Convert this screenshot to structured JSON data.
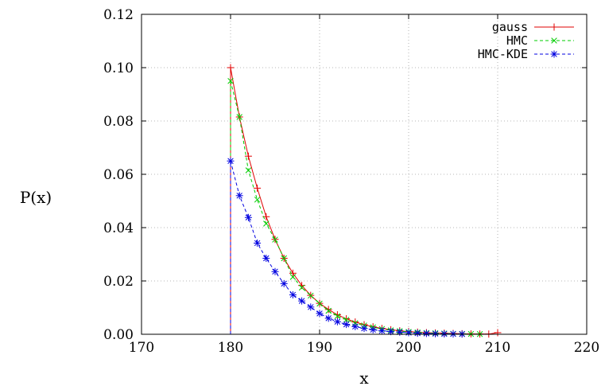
{
  "chart_data": {
    "type": "line",
    "xlabel": "x",
    "ylabel": "P(x)",
    "xlim": [
      170,
      220
    ],
    "ylim": [
      0,
      0.12
    ],
    "xticks": [
      "170",
      "180",
      "190",
      "200",
      "210",
      "220"
    ],
    "yticks": [
      "0.00",
      "0.02",
      "0.04",
      "0.06",
      "0.08",
      "0.10",
      "0.12"
    ],
    "grid": true,
    "legend_position": "top-right",
    "series": [
      {
        "name": "gauss",
        "color": "#e00000",
        "marker": "plus",
        "line": "solid",
        "x": [
          180,
          181,
          182,
          183,
          184,
          185,
          186,
          187,
          188,
          189,
          190,
          191,
          192,
          193,
          194,
          195,
          196,
          197,
          198,
          199,
          200,
          201,
          202,
          203,
          204,
          205,
          206,
          207,
          208,
          209,
          210
        ],
        "y": [
          0.1,
          0.0815,
          0.0668,
          0.0548,
          0.0441,
          0.0356,
          0.0285,
          0.0229,
          0.0183,
          0.0146,
          0.0116,
          0.0093,
          0.0073,
          0.0058,
          0.0046,
          0.0036,
          0.0028,
          0.0022,
          0.0017,
          0.0013,
          0.001,
          0.0008,
          0.0006,
          0.0005,
          0.0004,
          0.0003,
          0.0002,
          0.00015,
          0.0001,
          8e-05,
          0.0006
        ]
      },
      {
        "name": "HMC",
        "color": "#00cc00",
        "marker": "cross",
        "line": "dashed",
        "x": [
          180,
          181,
          182,
          183,
          184,
          185,
          186,
          187,
          188,
          189,
          190,
          191,
          192,
          193,
          194,
          195,
          196,
          197,
          198,
          199,
          200,
          201,
          202,
          203,
          204,
          205,
          206,
          207,
          208
        ],
        "y": [
          0.095,
          0.0815,
          0.0615,
          0.0505,
          0.0415,
          0.0355,
          0.0285,
          0.0215,
          0.0175,
          0.0145,
          0.0115,
          0.0088,
          0.0068,
          0.0054,
          0.0042,
          0.0033,
          0.0026,
          0.002,
          0.0015,
          0.0012,
          0.0009,
          0.0007,
          0.0005,
          0.0004,
          0.0003,
          0.0002,
          0.00015,
          0.0001,
          8e-05
        ]
      },
      {
        "name": "HMC-KDE",
        "color": "#0000e0",
        "marker": "star",
        "line": "dashed",
        "x": [
          180,
          181,
          182,
          183,
          184,
          185,
          186,
          187,
          188,
          189,
          190,
          191,
          192,
          193,
          194,
          195,
          196,
          197,
          198,
          199,
          200,
          201,
          202,
          203,
          204,
          205,
          206
        ],
        "y": [
          0.065,
          0.052,
          0.0438,
          0.0342,
          0.0285,
          0.0235,
          0.019,
          0.0148,
          0.0125,
          0.0102,
          0.0078,
          0.006,
          0.0047,
          0.0037,
          0.0029,
          0.0022,
          0.0017,
          0.0013,
          0.001,
          0.0008,
          0.0006,
          0.0004,
          0.0003,
          0.0002,
          0.00015,
          0.0001,
          8e-05
        ]
      }
    ]
  }
}
